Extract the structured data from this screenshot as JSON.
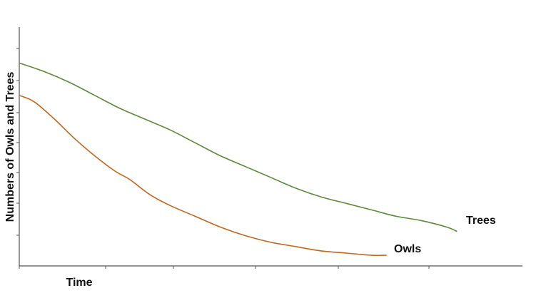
{
  "chart_data": {
    "type": "line",
    "title": "",
    "xlabel": "Time",
    "ylabel": "Numbers of Owls and Trees",
    "xlim": [
      0,
      100
    ],
    "ylim": [
      0,
      100
    ],
    "grid": false,
    "legend": "none (series labeled at line ends)",
    "series": [
      {
        "name": "Trees",
        "color": "#5d8a3a",
        "x": [
          0,
          5,
          10,
          15,
          20,
          25,
          30,
          35,
          40,
          45,
          50,
          55,
          60,
          65,
          70,
          75,
          80,
          85,
          87
        ],
        "values": [
          88,
          84,
          79,
          73,
          67,
          62,
          57,
          51,
          45,
          40,
          35,
          30,
          26,
          23,
          20,
          17,
          15,
          12,
          10
        ]
      },
      {
        "name": "Owls",
        "color": "#c2661b",
        "x": [
          0,
          3,
          7,
          11,
          15,
          19,
          22,
          26,
          30,
          35,
          40,
          45,
          50,
          55,
          60,
          65,
          70,
          73
        ],
        "values": [
          73,
          70,
          62,
          53,
          45,
          38,
          34,
          27,
          22,
          17,
          12,
          8,
          5,
          3,
          1,
          0,
          -1,
          -1
        ]
      }
    ]
  }
}
